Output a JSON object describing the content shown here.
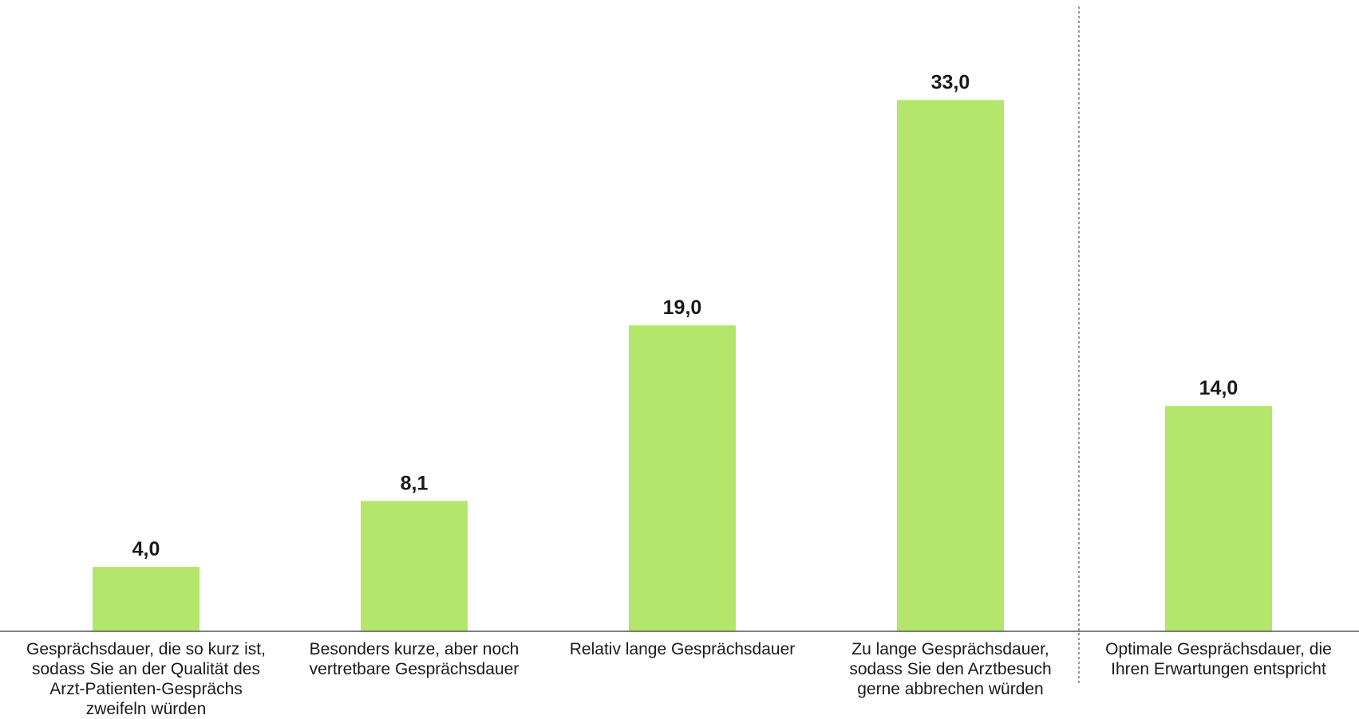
{
  "chart_data": {
    "type": "bar",
    "title": "",
    "xlabel": "",
    "ylabel": "",
    "ylim": [
      0,
      36
    ],
    "grid": false,
    "legend": "none",
    "bar_color": "#b3e66b",
    "separator_after_index": 3,
    "categories": [
      "Gesprächsdauer, die so kurz ist,\nsodass Sie an der Qualität des\nArzt-Patienten-Gesprächs\nzweifeln würden",
      "Besonders kurze, aber noch\nvertretbare Gesprächsdauer",
      "Relativ lange Gesprächsdauer",
      "Zu lange Gesprächsdauer,\nsodass Sie den Arztbesuch\ngerne abbrechen würden",
      "Optimale Gesprächsdauer, die\nIhren Erwartungen entspricht"
    ],
    "values": [
      4.0,
      8.1,
      19.0,
      33.0,
      14.0
    ],
    "value_labels": [
      "4,0",
      "8,1",
      "19,0",
      "33,0",
      "14,0"
    ]
  }
}
